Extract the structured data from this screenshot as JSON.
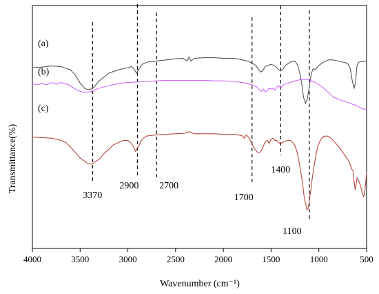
{
  "chart_data": {
    "type": "line",
    "xlabel": "Wavenumber (cm⁻¹)",
    "ylabel": "Transmittance(%)",
    "xlim": [
      4000,
      500
    ],
    "x_reversed": true,
    "x_ticks": [
      "4000",
      "3500",
      "3000",
      "2500",
      "2000",
      "1500",
      "1000",
      "500"
    ],
    "y_ticks_shown": false,
    "grid": false,
    "series": [
      {
        "name": "(a)",
        "color": "#555555",
        "points": [
          [
            4000,
            62
          ],
          [
            3900,
            62.5
          ],
          [
            3800,
            63.5
          ],
          [
            3700,
            63
          ],
          [
            3600,
            60
          ],
          [
            3550,
            55
          ],
          [
            3500,
            48
          ],
          [
            3450,
            43
          ],
          [
            3420,
            42
          ],
          [
            3370,
            43
          ],
          [
            3300,
            50
          ],
          [
            3200,
            57
          ],
          [
            3100,
            60
          ],
          [
            3000,
            62
          ],
          [
            2960,
            63
          ],
          [
            2930,
            60
          ],
          [
            2910,
            57
          ],
          [
            2890,
            60
          ],
          [
            2850,
            65
          ],
          [
            2800,
            67
          ],
          [
            2700,
            68
          ],
          [
            2600,
            69
          ],
          [
            2500,
            70
          ],
          [
            2420,
            70.5
          ],
          [
            2380,
            68
          ],
          [
            2360,
            71.5
          ],
          [
            2340,
            68
          ],
          [
            2300,
            70.5
          ],
          [
            2200,
            71
          ],
          [
            2100,
            71
          ],
          [
            2000,
            70.5
          ],
          [
            1900,
            70.5
          ],
          [
            1850,
            70
          ],
          [
            1800,
            69
          ],
          [
            1750,
            68
          ],
          [
            1700,
            66
          ],
          [
            1660,
            64
          ],
          [
            1630,
            60
          ],
          [
            1610,
            58
          ],
          [
            1590,
            59
          ],
          [
            1560,
            63
          ],
          [
            1530,
            64
          ],
          [
            1500,
            65
          ],
          [
            1470,
            64
          ],
          [
            1440,
            62
          ],
          [
            1420,
            60
          ],
          [
            1400,
            59
          ],
          [
            1380,
            60
          ],
          [
            1350,
            64
          ],
          [
            1300,
            67
          ],
          [
            1250,
            68
          ],
          [
            1220,
            64
          ],
          [
            1200,
            57
          ],
          [
            1180,
            48
          ],
          [
            1160,
            35
          ],
          [
            1140,
            30
          ],
          [
            1120,
            34
          ],
          [
            1100,
            45
          ],
          [
            1080,
            56
          ],
          [
            1060,
            61
          ],
          [
            1040,
            60
          ],
          [
            1020,
            62
          ],
          [
            1000,
            64
          ],
          [
            950,
            67
          ],
          [
            900,
            69
          ],
          [
            850,
            69
          ],
          [
            800,
            68
          ],
          [
            750,
            67
          ],
          [
            700,
            66
          ],
          [
            670,
            61
          ],
          [
            650,
            50
          ],
          [
            630,
            43
          ],
          [
            615,
            50
          ],
          [
            600,
            64
          ],
          [
            580,
            67
          ],
          [
            500,
            68
          ]
        ]
      },
      {
        "name": "(b)",
        "color": "#cc66ff",
        "points": [
          [
            4000,
            48
          ],
          [
            3950,
            47
          ],
          [
            3900,
            48
          ],
          [
            3850,
            47
          ],
          [
            3800,
            49
          ],
          [
            3750,
            47.5
          ],
          [
            3700,
            49
          ],
          [
            3650,
            48
          ],
          [
            3600,
            46
          ],
          [
            3550,
            43
          ],
          [
            3500,
            41
          ],
          [
            3450,
            40
          ],
          [
            3400,
            40.5
          ],
          [
            3350,
            42
          ],
          [
            3300,
            44
          ],
          [
            3200,
            46
          ],
          [
            3100,
            48
          ],
          [
            3000,
            49
          ],
          [
            2900,
            49.5
          ],
          [
            2800,
            50
          ],
          [
            2700,
            50.5
          ],
          [
            2600,
            51
          ],
          [
            2500,
            51
          ],
          [
            2400,
            51
          ],
          [
            2300,
            51
          ],
          [
            2200,
            51
          ],
          [
            2100,
            50.5
          ],
          [
            2000,
            50.5
          ],
          [
            1900,
            50
          ],
          [
            1800,
            49
          ],
          [
            1700,
            47
          ],
          [
            1650,
            45
          ],
          [
            1620,
            42
          ],
          [
            1600,
            41
          ],
          [
            1580,
            43
          ],
          [
            1560,
            40.5
          ],
          [
            1540,
            42
          ],
          [
            1520,
            44
          ],
          [
            1500,
            43
          ],
          [
            1480,
            44
          ],
          [
            1460,
            42
          ],
          [
            1440,
            45
          ],
          [
            1420,
            46
          ],
          [
            1400,
            44
          ],
          [
            1380,
            46
          ],
          [
            1350,
            48
          ],
          [
            1300,
            49
          ],
          [
            1250,
            50.5
          ],
          [
            1200,
            51.5
          ],
          [
            1150,
            52
          ],
          [
            1100,
            51.5
          ],
          [
            1050,
            49.5
          ],
          [
            1000,
            47
          ],
          [
            950,
            44
          ],
          [
            900,
            40
          ],
          [
            850,
            36
          ],
          [
            800,
            34
          ],
          [
            750,
            32.5
          ],
          [
            700,
            31
          ],
          [
            650,
            29.5
          ],
          [
            600,
            28
          ],
          [
            560,
            26
          ],
          [
            530,
            25
          ],
          [
            500,
            24.5
          ]
        ]
      },
      {
        "name": "(c)",
        "color": "#b5463d",
        "points": [
          [
            4000,
            34
          ],
          [
            3900,
            33.5
          ],
          [
            3800,
            33
          ],
          [
            3700,
            31
          ],
          [
            3650,
            29
          ],
          [
            3600,
            25
          ],
          [
            3550,
            20
          ],
          [
            3500,
            15
          ],
          [
            3450,
            12
          ],
          [
            3420,
            10
          ],
          [
            3380,
            9.5
          ],
          [
            3350,
            11
          ],
          [
            3300,
            14
          ],
          [
            3250,
            19
          ],
          [
            3200,
            23
          ],
          [
            3150,
            27
          ],
          [
            3100,
            29
          ],
          [
            3050,
            31
          ],
          [
            3000,
            31
          ],
          [
            2970,
            29
          ],
          [
            2940,
            25
          ],
          [
            2920,
            21
          ],
          [
            2900,
            24
          ],
          [
            2880,
            27
          ],
          [
            2860,
            31
          ],
          [
            2840,
            33
          ],
          [
            2800,
            35
          ],
          [
            2700,
            36
          ],
          [
            2600,
            36.5
          ],
          [
            2500,
            37
          ],
          [
            2400,
            37.5
          ],
          [
            2380,
            38
          ],
          [
            2360,
            39
          ],
          [
            2340,
            38
          ],
          [
            2300,
            37
          ],
          [
            2200,
            37
          ],
          [
            2100,
            37
          ],
          [
            2000,
            36.5
          ],
          [
            1900,
            36.5
          ],
          [
            1850,
            36
          ],
          [
            1800,
            35
          ],
          [
            1780,
            33
          ],
          [
            1760,
            36
          ],
          [
            1730,
            33
          ],
          [
            1700,
            28
          ],
          [
            1680,
            24
          ],
          [
            1660,
            22
          ],
          [
            1640,
            20
          ],
          [
            1620,
            20
          ],
          [
            1600,
            22
          ],
          [
            1580,
            26
          ],
          [
            1560,
            30
          ],
          [
            1540,
            31
          ],
          [
            1520,
            28
          ],
          [
            1500,
            32
          ],
          [
            1480,
            33
          ],
          [
            1460,
            31
          ],
          [
            1440,
            31
          ],
          [
            1420,
            29
          ],
          [
            1400,
            28
          ],
          [
            1380,
            29
          ],
          [
            1360,
            30
          ],
          [
            1330,
            31
          ],
          [
            1300,
            31
          ],
          [
            1270,
            29
          ],
          [
            1250,
            26
          ],
          [
            1230,
            21
          ],
          [
            1210,
            13
          ],
          [
            1190,
            3
          ],
          [
            1170,
            -8
          ],
          [
            1160,
            -16
          ],
          [
            1150,
            -22
          ],
          [
            1140,
            -26
          ],
          [
            1130,
            -30
          ],
          [
            1125,
            -32
          ],
          [
            1115,
            -31
          ],
          [
            1105,
            -27
          ],
          [
            1090,
            -18
          ],
          [
            1070,
            -4
          ],
          [
            1050,
            8
          ],
          [
            1030,
            18
          ],
          [
            1010,
            26
          ],
          [
            990,
            30
          ],
          [
            970,
            33
          ],
          [
            950,
            34.5
          ],
          [
            920,
            35
          ],
          [
            900,
            34.5
          ],
          [
            870,
            33
          ],
          [
            850,
            31
          ],
          [
            820,
            28
          ],
          [
            780,
            24
          ],
          [
            740,
            19
          ],
          [
            700,
            14
          ],
          [
            680,
            11
          ],
          [
            660,
            6
          ],
          [
            650,
            4
          ],
          [
            640,
            3
          ],
          [
            635,
            -3
          ],
          [
            625,
            -10
          ],
          [
            618,
            -14
          ],
          [
            610,
            -9
          ],
          [
            600,
            -3
          ],
          [
            580,
            -6
          ],
          [
            560,
            -11
          ],
          [
            545,
            -17
          ],
          [
            532,
            -20
          ],
          [
            520,
            -17
          ],
          [
            510,
            -8
          ],
          [
            500,
            2
          ]
        ]
      }
    ],
    "series_labels": [
      "(a)",
      "(b)",
      "(c)"
    ],
    "reference_lines": [
      3370,
      2900,
      2700,
      1700,
      1400,
      1100
    ],
    "annotations": [
      "3370",
      "2900",
      "2700",
      "1700",
      "1400",
      "1100"
    ]
  }
}
